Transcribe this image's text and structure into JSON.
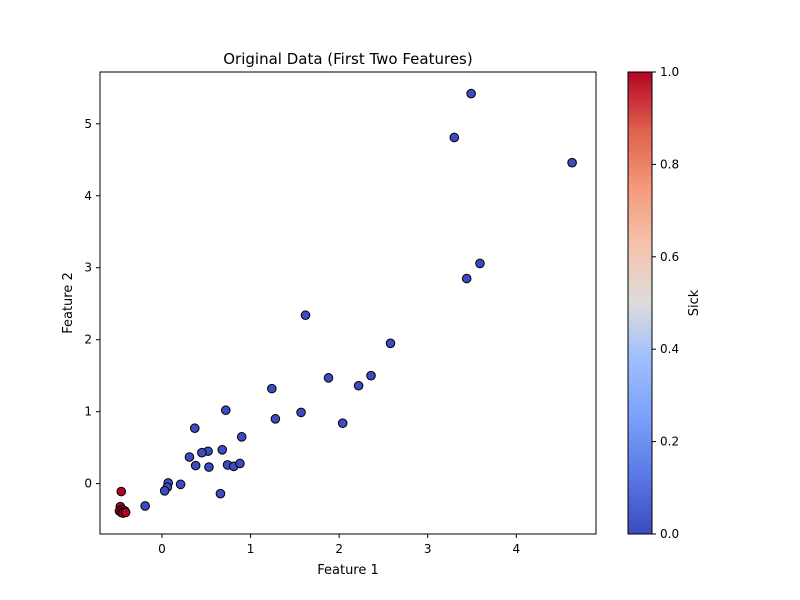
{
  "chart_data": {
    "type": "scatter",
    "title": "Original Data (First Two Features)",
    "xlabel": "Feature 1",
    "ylabel": "Feature 2",
    "xlim": [
      -0.7,
      4.9
    ],
    "ylim": [
      -0.7,
      5.72
    ],
    "xticks": [
      0,
      1,
      2,
      3,
      4
    ],
    "yticks": [
      0,
      1,
      2,
      3,
      4,
      5
    ],
    "grid": false,
    "colorbar": {
      "label": "Sick",
      "range": [
        0,
        1
      ],
      "ticks": [
        "0.0",
        "0.2",
        "0.4",
        "0.6",
        "0.8",
        "1.0"
      ],
      "colormap": "coolwarm"
    },
    "points": [
      {
        "x": 3.49,
        "y": 5.42,
        "c": 0
      },
      {
        "x": 3.3,
        "y": 4.81,
        "c": 0
      },
      {
        "x": 4.63,
        "y": 4.46,
        "c": 0
      },
      {
        "x": 3.59,
        "y": 3.06,
        "c": 0
      },
      {
        "x": 3.44,
        "y": 2.85,
        "c": 0
      },
      {
        "x": 1.62,
        "y": 2.34,
        "c": 0
      },
      {
        "x": 2.58,
        "y": 1.95,
        "c": 0
      },
      {
        "x": 1.88,
        "y": 1.47,
        "c": 0
      },
      {
        "x": 2.36,
        "y": 1.5,
        "c": 0
      },
      {
        "x": 2.22,
        "y": 1.36,
        "c": 0
      },
      {
        "x": 1.24,
        "y": 1.32,
        "c": 0
      },
      {
        "x": 1.57,
        "y": 0.99,
        "c": 0
      },
      {
        "x": 1.28,
        "y": 0.9,
        "c": 0
      },
      {
        "x": 2.04,
        "y": 0.84,
        "c": 0
      },
      {
        "x": 0.72,
        "y": 1.02,
        "c": 0
      },
      {
        "x": 0.37,
        "y": 0.77,
        "c": 0
      },
      {
        "x": 0.9,
        "y": 0.65,
        "c": 0
      },
      {
        "x": 0.68,
        "y": 0.47,
        "c": 0
      },
      {
        "x": 0.52,
        "y": 0.45,
        "c": 0
      },
      {
        "x": 0.45,
        "y": 0.43,
        "c": 0
      },
      {
        "x": 0.31,
        "y": 0.37,
        "c": 0
      },
      {
        "x": 0.38,
        "y": 0.25,
        "c": 0
      },
      {
        "x": 0.53,
        "y": 0.23,
        "c": 0
      },
      {
        "x": 0.74,
        "y": 0.26,
        "c": 0
      },
      {
        "x": 0.81,
        "y": 0.24,
        "c": 0
      },
      {
        "x": 0.88,
        "y": 0.28,
        "c": 0
      },
      {
        "x": 0.07,
        "y": 0.01,
        "c": 0
      },
      {
        "x": 0.06,
        "y": -0.05,
        "c": 0
      },
      {
        "x": 0.21,
        "y": -0.01,
        "c": 0
      },
      {
        "x": 0.03,
        "y": -0.1,
        "c": 0
      },
      {
        "x": 0.66,
        "y": -0.14,
        "c": 0
      },
      {
        "x": -0.19,
        "y": -0.31,
        "c": 0
      },
      {
        "x": -0.46,
        "y": -0.11,
        "c": 1
      },
      {
        "x": -0.47,
        "y": -0.32,
        "c": 1
      },
      {
        "x": -0.45,
        "y": -0.36,
        "c": 1
      },
      {
        "x": -0.48,
        "y": -0.38,
        "c": 1
      },
      {
        "x": -0.42,
        "y": -0.38,
        "c": 1
      },
      {
        "x": -0.46,
        "y": -0.4,
        "c": 1
      },
      {
        "x": -0.44,
        "y": -0.41,
        "c": 1
      },
      {
        "x": -0.41,
        "y": -0.4,
        "c": 1
      }
    ]
  }
}
